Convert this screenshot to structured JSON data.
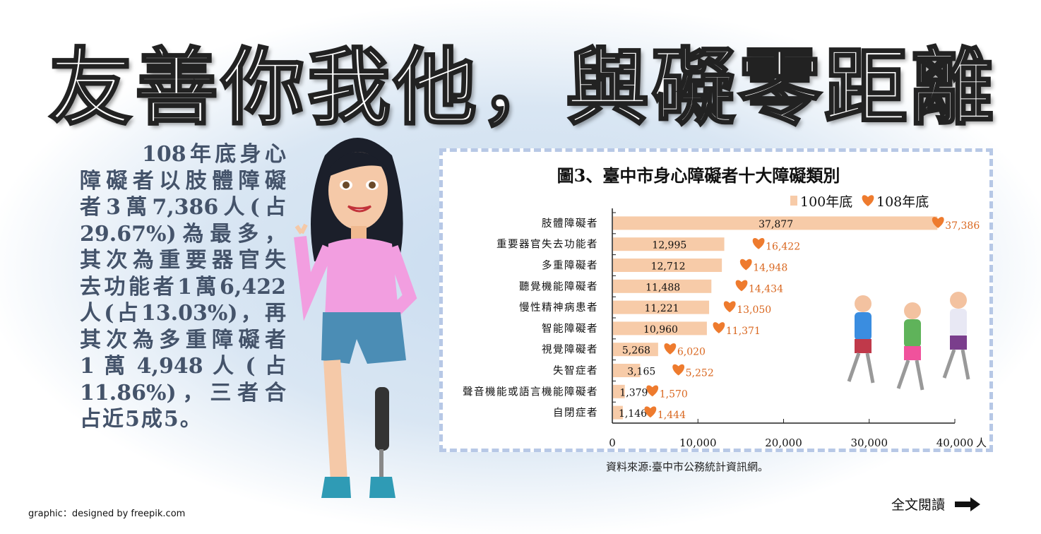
{
  "title": "友善你我他，與礙零距離",
  "paragraph": [
    "108年底身心",
    "障礙者以肢體障礙",
    "者3萬7,386人(占",
    "29.67%)為最多，",
    "其次為重要器官失",
    "去功能者1萬6,422",
    "人(占13.03%)，再",
    "其次為多重障礙者",
    "1 萬 4,948 人 ( 占",
    "11.86%)，三者合",
    "占近5成5。"
  ],
  "source": "資料來源:臺中市公務統計資訊網。",
  "credit": "graphic：designed by freepik.com",
  "read_more": "全文閱讀",
  "icons": {
    "read_more": "arrow-right-icon",
    "legend_108": "heart-icon"
  },
  "chart_data": {
    "type": "bar",
    "orientation": "horizontal",
    "title": "圖3、臺中市身心障礙者十大障礙類別",
    "unit": "人",
    "categories": [
      "肢體障礙者",
      "重要器官失去功能者",
      "多重障礙者",
      "聽覺機能障礙者",
      "慢性精神病患者",
      "智能障礙者",
      "視覺障礙者",
      "失智症者",
      "聲音機能或語言機能障礙者",
      "自閉症者"
    ],
    "series": [
      {
        "name": "100年底",
        "marker": "bar",
        "color": "#f7cba8",
        "labels": [
          "37,877",
          "12,995",
          "12,712",
          "11,488",
          "11,221",
          "10,960",
          "5,268",
          "3,165",
          "1,379",
          "1,146"
        ],
        "values": [
          37877,
          12995,
          12712,
          11488,
          11221,
          10960,
          5268,
          3165,
          1379,
          1146
        ]
      },
      {
        "name": "108年底",
        "marker": "heart",
        "color": "#ee7b2e",
        "labels": [
          "37,386",
          "16,422",
          "14,948",
          "14,434",
          "13,050",
          "11,371",
          "6,020",
          "5,252",
          "1,570",
          "1,444"
        ],
        "values": [
          37386,
          16422,
          14948,
          14434,
          13050,
          11371,
          6020,
          5252,
          1570,
          1444
        ]
      }
    ],
    "xlim": [
      0,
      40000
    ],
    "xticks": [
      "0",
      "10,000",
      "20,000",
      "30,000",
      "40,000"
    ],
    "legend": "top-right",
    "grid": false
  }
}
